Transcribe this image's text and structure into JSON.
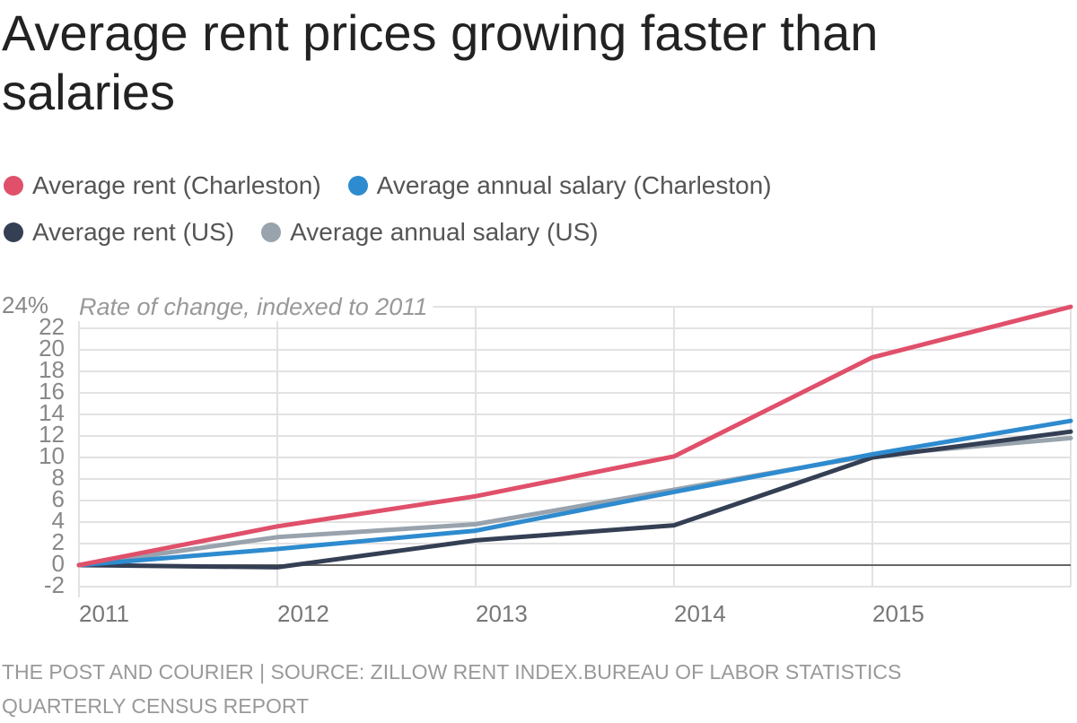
{
  "chart_data": {
    "type": "line",
    "title": "Average rent prices growing faster than salaries",
    "subtitle": "Rate of change, indexed to 2011",
    "source": "THE POST AND COURIER | SOURCE: ZILLOW RENT INDEX.BUREAU OF LABOR STATISTICS QUARTERLY CENSUS REPORT",
    "categories": [
      "2011",
      "2012",
      "2013",
      "2014",
      "2015",
      null
    ],
    "series": [
      {
        "name": "Average rent (Charleston)",
        "color": "#e0506a",
        "values": [
          0,
          3.6,
          6.4,
          10.1,
          19.3,
          24
        ]
      },
      {
        "name": "Average annual salary (Charleston)",
        "color": "#2e8bcf",
        "values": [
          0,
          1.5,
          3.2,
          6.8,
          10.3,
          13.4
        ]
      },
      {
        "name": "Average rent (US)",
        "color": "#343f54",
        "values": [
          0,
          -0.2,
          2.3,
          3.7,
          10.0,
          12.4
        ]
      },
      {
        "name": "Average annual salary (US)",
        "color": "#99a3ad",
        "values": [
          0,
          2.6,
          3.8,
          7.0,
          10.2,
          11.8
        ]
      }
    ],
    "ylim": [
      -2,
      24
    ],
    "yticks": [
      -2,
      0,
      2,
      4,
      6,
      8,
      10,
      12,
      14,
      16,
      18,
      20,
      22,
      {
        "value": 24,
        "label": "24%"
      }
    ],
    "grid": true
  }
}
